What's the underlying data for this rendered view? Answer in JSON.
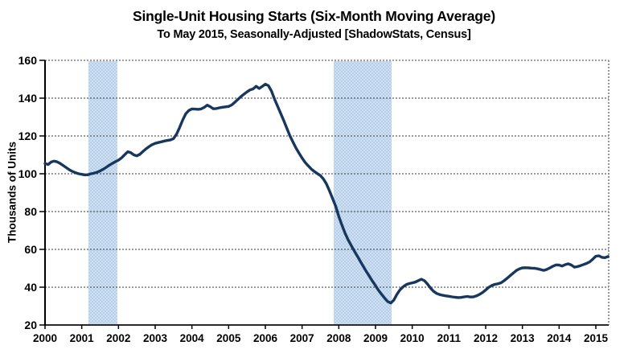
{
  "chart_data": {
    "type": "line",
    "title": "Single-Unit Housing Starts (Six-Month Moving Average)",
    "subtitle": "To May 2015, Seasonally-Adjusted [ShadowStats, Census]",
    "ylabel": "Thousands of Units",
    "xlabel": "",
    "legend": "none",
    "grid": "horizontal-dotted",
    "xlim": [
      2000,
      2015.37
    ],
    "ylim": [
      20,
      160
    ],
    "y_ticks": [
      20,
      40,
      60,
      80,
      100,
      120,
      140,
      160
    ],
    "x_tick_labels": [
      "2000",
      "2001",
      "2002",
      "2003",
      "2004",
      "2005",
      "2006",
      "2007",
      "2008",
      "2009",
      "2010",
      "2011",
      "2012",
      "2013",
      "2014",
      "2015"
    ],
    "recession_bands": [
      {
        "name": "2001-recession",
        "from": 2001.18,
        "to": 2001.97
      },
      {
        "name": "2007-2009-recession",
        "from": 2007.86,
        "to": 2009.44
      }
    ],
    "series": [
      {
        "name": "Single-unit housing starts, six-month moving average (thousands of units, monthly, Jan 2000 - May 2015)",
        "x_start_year": 2000,
        "x_step_months": 1,
        "monthly_values": [
          105.4,
          104.9,
          106.2,
          106.7,
          106.3,
          105.4,
          104.3,
          103.2,
          102.1,
          101.2,
          100.5,
          100.0,
          99.7,
          99.4,
          99.5,
          100.0,
          100.3,
          100.8,
          101.5,
          102.4,
          103.4,
          104.5,
          105.5,
          106.4,
          107.2,
          108.4,
          110.0,
          111.6,
          111.2,
          110.0,
          109.5,
          110.3,
          111.8,
          113.2,
          114.4,
          115.4,
          116.1,
          116.5,
          116.9,
          117.3,
          117.6,
          117.9,
          118.6,
          121.0,
          124.5,
          128.5,
          131.8,
          133.5,
          134.3,
          134.2,
          134.1,
          134.3,
          135.1,
          136.3,
          135.5,
          134.4,
          134.5,
          134.9,
          135.2,
          135.4,
          135.6,
          136.4,
          137.8,
          139.3,
          140.8,
          142.1,
          143.3,
          144.4,
          144.9,
          146.3,
          145.1,
          146.2,
          147.4,
          146.6,
          143.8,
          139.5,
          135.8,
          132.0,
          128.2,
          124.2,
          120.2,
          116.8,
          113.6,
          110.9,
          108.3,
          106.0,
          104.2,
          102.5,
          101.2,
          100.1,
          99.0,
          97.2,
          94.5,
          90.8,
          86.8,
          82.8,
          77.5,
          73.0,
          68.8,
          65.2,
          62.2,
          59.3,
          56.6,
          53.8,
          51.0,
          48.3,
          45.8,
          43.2,
          40.8,
          38.3,
          36.2,
          34.2,
          32.4,
          31.6,
          33.2,
          36.2,
          38.6,
          40.2,
          41.3,
          41.9,
          42.3,
          42.7,
          43.5,
          44.2,
          43.4,
          41.6,
          39.5,
          37.8,
          36.7,
          36.1,
          35.7,
          35.4,
          35.2,
          34.9,
          34.7,
          34.5,
          34.6,
          34.9,
          35.1,
          34.8,
          34.9,
          35.4,
          36.2,
          37.2,
          38.5,
          39.9,
          40.9,
          41.5,
          41.8,
          42.3,
          43.4,
          44.7,
          46.1,
          47.5,
          48.8,
          49.7,
          50.2,
          50.3,
          50.2,
          50.1,
          50.0,
          49.7,
          49.3,
          48.9,
          49.4,
          50.2,
          51.1,
          51.8,
          51.7,
          51.2,
          51.9,
          52.4,
          51.7,
          50.6,
          50.9,
          51.4,
          52.0,
          52.6,
          53.4,
          54.8,
          56.4,
          56.6,
          55.8,
          55.6,
          56.2
        ]
      }
    ],
    "colors": {
      "line": "#17375e",
      "band_base": "#cfe0f2",
      "band_check": "#b7cfe9",
      "grid": "#3a3a3a",
      "axis": "#000000",
      "frame": "#7f7f7f",
      "text": "#000000"
    }
  }
}
